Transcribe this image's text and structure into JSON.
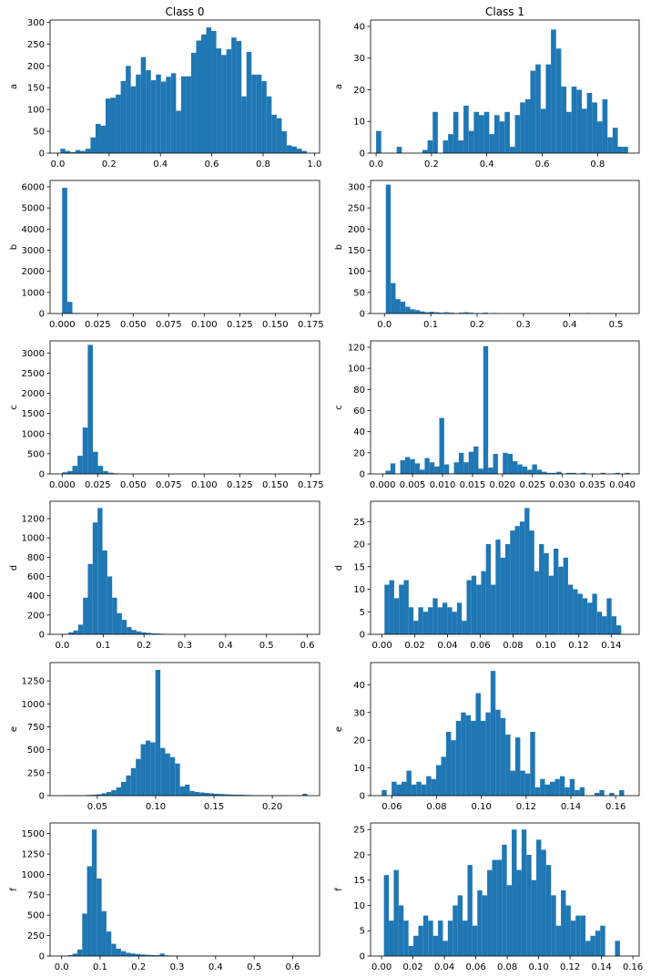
{
  "figure": {
    "background": "#ffffff",
    "bar_color": "#1f77b4"
  },
  "chart_data": [
    {
      "type": "bar",
      "title": "Class 0",
      "ylabel": "a",
      "xlim": [
        -0.03,
        1.02
      ],
      "ylim": [
        0,
        305
      ],
      "xticks": [
        0.0,
        0.2,
        0.4,
        0.6,
        0.8,
        1.0
      ],
      "xtick_labels": [
        "0.0",
        "0.2",
        "0.4",
        "0.6",
        "0.8",
        "1.0"
      ],
      "yticks": [
        0,
        50,
        100,
        150,
        200,
        250,
        300
      ],
      "ytick_labels": [
        "0",
        "50",
        "100",
        "150",
        "200",
        "250",
        "300"
      ],
      "bin_start": 0.01,
      "bin_width": 0.0196,
      "values": [
        10,
        5,
        2,
        7,
        5,
        10,
        36,
        67,
        63,
        125,
        127,
        134,
        165,
        200,
        153,
        180,
        220,
        190,
        167,
        180,
        164,
        175,
        183,
        97,
        176,
        176,
        230,
        258,
        272,
        288,
        280,
        240,
        225,
        238,
        265,
        257,
        130,
        232,
        180,
        180,
        165,
        130,
        88,
        80,
        50,
        18,
        15,
        10,
        5
      ]
    },
    {
      "type": "bar",
      "title": "Class 1",
      "ylabel": "a",
      "xlim": [
        -0.02,
        0.95
      ],
      "ylim": [
        0,
        42
      ],
      "xticks": [
        0.0,
        0.2,
        0.4,
        0.6,
        0.8
      ],
      "xtick_labels": [
        "0.0",
        "0.2",
        "0.4",
        "0.6",
        "0.8"
      ],
      "yticks": [
        0,
        10,
        20,
        30,
        40
      ],
      "ytick_labels": [
        "0",
        "10",
        "20",
        "30",
        "40"
      ],
      "bin_start": 0.0,
      "bin_width": 0.01857,
      "values": [
        7,
        0,
        0,
        0,
        2,
        0,
        0,
        0,
        0,
        1,
        4,
        13,
        0,
        4,
        6,
        13,
        4,
        15,
        7,
        13,
        12,
        13,
        6,
        12,
        10,
        13,
        2,
        12,
        16,
        17,
        26,
        28,
        14,
        28,
        39,
        33,
        21,
        13,
        21,
        20,
        14,
        19,
        16,
        10,
        17,
        5,
        8,
        2,
        2
      ]
    },
    {
      "type": "bar",
      "title": "",
      "ylabel": "b",
      "xlim": [
        -0.0085,
        0.1812
      ],
      "ylim": [
        0,
        6300
      ],
      "xticks": [
        0.0,
        0.025,
        0.05,
        0.075,
        0.1,
        0.125,
        0.15,
        0.175
      ],
      "xtick_labels": [
        "0.000",
        "0.025",
        "0.050",
        "0.075",
        "0.100",
        "0.125",
        "0.150",
        "0.175"
      ],
      "yticks": [
        0,
        1000,
        2000,
        3000,
        4000,
        5000,
        6000
      ],
      "ytick_labels": [
        "0",
        "1000",
        "2000",
        "3000",
        "4000",
        "5000",
        "6000"
      ],
      "bin_start": 0.0,
      "bin_width": 0.0036,
      "values": [
        5950,
        550,
        25,
        8,
        3,
        2,
        1,
        1,
        0,
        0,
        0,
        0,
        0,
        0,
        0,
        0,
        0,
        0,
        0,
        0,
        0,
        0,
        0,
        0,
        0,
        0,
        0,
        0,
        0,
        0,
        0,
        0,
        0,
        0,
        0,
        0,
        0,
        0,
        0,
        0,
        0,
        0,
        0,
        0,
        0,
        0,
        0,
        0,
        0,
        1
      ]
    },
    {
      "type": "bar",
      "title": "",
      "ylabel": "b",
      "xlim": [
        -0.03,
        0.55
      ],
      "ylim": [
        0,
        315
      ],
      "xticks": [
        0.0,
        0.1,
        0.2,
        0.3,
        0.4,
        0.5
      ],
      "xtick_labels": [
        "0.0",
        "0.1",
        "0.2",
        "0.3",
        "0.4",
        "0.5"
      ],
      "yticks": [
        0,
        50,
        100,
        150,
        200,
        250,
        300
      ],
      "ytick_labels": [
        "0",
        "50",
        "100",
        "150",
        "200",
        "250",
        "300"
      ],
      "bin_start": 0.003,
      "bin_width": 0.0105,
      "values": [
        305,
        72,
        34,
        28,
        16,
        10,
        8,
        5,
        3,
        4,
        3,
        2,
        3,
        2,
        1,
        2,
        3,
        2,
        1,
        1,
        2,
        0,
        1,
        0,
        0,
        0,
        0,
        0,
        0,
        0,
        0,
        0,
        0,
        0,
        0,
        0,
        0,
        0,
        0,
        0,
        0,
        1,
        0,
        0,
        0,
        0,
        1,
        0,
        0,
        0
      ]
    },
    {
      "type": "bar",
      "title": "",
      "ylabel": "c",
      "xlim": [
        -0.0085,
        0.1812
      ],
      "ylim": [
        0,
        3300
      ],
      "xticks": [
        0.0,
        0.025,
        0.05,
        0.075,
        0.1,
        0.125,
        0.15,
        0.175
      ],
      "xtick_labels": [
        "0.000",
        "0.025",
        "0.050",
        "0.075",
        "0.100",
        "0.125",
        "0.150",
        "0.175"
      ],
      "yticks": [
        0,
        500,
        1000,
        1500,
        2000,
        2500,
        3000
      ],
      "ytick_labels": [
        "0",
        "500",
        "1000",
        "1500",
        "2000",
        "2500",
        "3000"
      ],
      "bin_start": 0.0,
      "bin_width": 0.0036,
      "values": [
        40,
        70,
        200,
        450,
        1150,
        3200,
        550,
        200,
        70,
        30,
        15,
        5,
        3,
        2,
        1,
        1,
        0,
        0,
        0,
        0,
        0,
        0,
        0,
        0,
        0,
        0,
        0,
        0,
        0,
        0,
        0,
        0,
        0,
        0,
        0,
        0,
        0,
        0,
        0,
        0,
        0,
        0,
        0,
        0,
        0,
        0,
        0,
        0,
        0,
        1
      ]
    },
    {
      "type": "bar",
      "title": "",
      "ylabel": "c",
      "xlim": [
        -0.002,
        0.0428
      ],
      "ylim": [
        0,
        126
      ],
      "xticks": [
        0.0,
        0.005,
        0.01,
        0.015,
        0.02,
        0.025,
        0.03,
        0.035,
        0.04
      ],
      "xtick_labels": [
        "0.000",
        "0.005",
        "0.010",
        "0.015",
        "0.020",
        "0.025",
        "0.030",
        "0.035",
        "0.040"
      ],
      "yticks": [
        0,
        20,
        40,
        60,
        80,
        100,
        120
      ],
      "ytick_labels": [
        "0",
        "20",
        "40",
        "60",
        "80",
        "100",
        "120"
      ],
      "bin_start": 0.0005,
      "bin_width": 0.000815,
      "values": [
        3,
        10,
        0,
        13,
        16,
        14,
        10,
        4,
        15,
        11,
        7,
        53,
        9,
        0,
        11,
        20,
        11,
        21,
        26,
        5,
        121,
        6,
        19,
        0,
        20,
        19,
        12,
        9,
        7,
        4,
        9,
        4,
        2,
        1,
        1,
        2,
        0,
        1,
        1,
        0,
        1,
        0,
        0,
        0,
        1,
        0,
        0,
        1,
        0,
        1
      ]
    },
    {
      "type": "bar",
      "title": "",
      "ylabel": "d",
      "xlim": [
        -0.03,
        0.63
      ],
      "ylim": [
        0,
        1380
      ],
      "xticks": [
        0.0,
        0.1,
        0.2,
        0.3,
        0.4,
        0.5,
        0.6
      ],
      "xtick_labels": [
        "0.0",
        "0.1",
        "0.2",
        "0.3",
        "0.4",
        "0.5",
        "0.6"
      ],
      "yticks": [
        0,
        200,
        400,
        600,
        800,
        1000,
        1200
      ],
      "ytick_labels": [
        "0",
        "200",
        "400",
        "600",
        "800",
        "1000",
        "1200"
      ],
      "bin_start": 0.003,
      "bin_width": 0.0119,
      "values": [
        5,
        20,
        40,
        100,
        380,
        730,
        1160,
        1310,
        870,
        600,
        380,
        220,
        150,
        75,
        45,
        30,
        20,
        15,
        10,
        8,
        5,
        3,
        2,
        2,
        1,
        1,
        0,
        0,
        0,
        0,
        0,
        0,
        0,
        0,
        0,
        0,
        0,
        0,
        0,
        0,
        0,
        0,
        0,
        0,
        0,
        0,
        0,
        0,
        1,
        0
      ]
    },
    {
      "type": "bar",
      "title": "",
      "ylabel": "d",
      "xlim": [
        -0.007,
        0.157
      ],
      "ylim": [
        0,
        29.5
      ],
      "xticks": [
        0.0,
        0.02,
        0.04,
        0.06,
        0.08,
        0.1,
        0.12,
        0.14
      ],
      "xtick_labels": [
        "0.00",
        "0.02",
        "0.04",
        "0.06",
        "0.08",
        "0.10",
        "0.12",
        "0.14"
      ],
      "yticks": [
        0,
        5,
        10,
        15,
        20,
        25
      ],
      "ytick_labels": [
        "0",
        "5",
        "10",
        "15",
        "20",
        "25"
      ],
      "bin_start": 0.0015,
      "bin_width": 0.00295,
      "values": [
        11,
        12,
        8,
        11,
        12,
        6,
        3,
        6,
        5,
        6,
        8,
        6,
        7,
        6,
        5,
        7,
        3,
        12,
        13,
        11,
        14,
        20,
        11,
        21,
        17,
        20,
        23,
        24,
        25,
        28,
        23,
        14,
        20,
        18,
        13,
        19,
        15,
        17,
        11,
        10,
        9,
        8,
        7,
        9,
        5,
        4,
        8,
        4,
        2
      ]
    },
    {
      "type": "bar",
      "title": "",
      "ylabel": "e",
      "xlim": [
        0.0095,
        0.2405
      ],
      "ylim": [
        0,
        1450
      ],
      "xticks": [
        0.05,
        0.1,
        0.15,
        0.2
      ],
      "xtick_labels": [
        "0.05",
        "0.10",
        "0.15",
        "0.20"
      ],
      "yticks": [
        0,
        250,
        500,
        750,
        1000,
        1250
      ],
      "ytick_labels": [
        "0",
        "250",
        "500",
        "750",
        "1000",
        "1250"
      ],
      "bin_start": 0.02,
      "bin_width": 0.0042,
      "values": [
        5,
        3,
        3,
        5,
        5,
        8,
        10,
        15,
        25,
        40,
        60,
        90,
        150,
        220,
        300,
        400,
        560,
        600,
        580,
        1370,
        520,
        460,
        420,
        350,
        100,
        120,
        50,
        40,
        35,
        30,
        25,
        20,
        18,
        15,
        12,
        10,
        10,
        8,
        6,
        5,
        5,
        5,
        4,
        3,
        3,
        3,
        2,
        2,
        2,
        20
      ]
    },
    {
      "type": "bar",
      "title": "",
      "ylabel": "e",
      "xlim": [
        0.0505,
        0.1705
      ],
      "ylim": [
        0,
        48
      ],
      "xticks": [
        0.06,
        0.08,
        0.1,
        0.12,
        0.14,
        0.16
      ],
      "xtick_labels": [
        "0.06",
        "0.08",
        "0.10",
        "0.12",
        "0.14",
        "0.16"
      ],
      "yticks": [
        0,
        10,
        20,
        30,
        40
      ],
      "ytick_labels": [
        "0",
        "10",
        "20",
        "30",
        "40"
      ],
      "bin_start": 0.0555,
      "bin_width": 0.00221,
      "values": [
        2,
        0,
        5,
        4,
        5,
        9,
        4,
        5,
        4,
        7,
        6,
        11,
        14,
        23,
        20,
        27,
        30,
        29,
        27,
        37,
        27,
        30,
        45,
        31,
        28,
        22,
        9,
        21,
        9,
        8,
        23,
        3,
        6,
        4,
        5,
        6,
        7,
        3,
        6,
        2,
        3,
        0,
        0,
        1,
        2,
        0,
        1,
        0,
        2
      ]
    },
    {
      "type": "bar",
      "title": "",
      "ylabel": "f",
      "xlim": [
        -0.03,
        0.67
      ],
      "ylim": [
        0,
        1630
      ],
      "xticks": [
        0.0,
        0.1,
        0.2,
        0.3,
        0.4,
        0.5,
        0.6
      ],
      "xtick_labels": [
        "0.0",
        "0.1",
        "0.2",
        "0.3",
        "0.4",
        "0.5",
        "0.6"
      ],
      "yticks": [
        0,
        250,
        500,
        750,
        1000,
        1250,
        1500
      ],
      "ytick_labels": [
        "0",
        "250",
        "500",
        "750",
        "1000",
        "1250",
        "1500"
      ],
      "bin_start": 0.003,
      "bin_width": 0.0126,
      "values": [
        5,
        10,
        30,
        80,
        520,
        1100,
        1550,
        950,
        550,
        300,
        150,
        90,
        60,
        40,
        30,
        25,
        20,
        15,
        12,
        10,
        30,
        8,
        6,
        5,
        4,
        3,
        3,
        2,
        2,
        2,
        1,
        1,
        1,
        1,
        1,
        1,
        1,
        1,
        1,
        1,
        1,
        1,
        1,
        1,
        1,
        1,
        1,
        1,
        1,
        1
      ]
    },
    {
      "type": "bar",
      "title": "",
      "ylabel": "f",
      "xlim": [
        -0.007,
        0.164
      ],
      "ylim": [
        0,
        26.3
      ],
      "xticks": [
        0.0,
        0.02,
        0.04,
        0.06,
        0.08,
        0.1,
        0.12,
        0.14,
        0.16
      ],
      "xtick_labels": [
        "0.00",
        "0.02",
        "0.04",
        "0.06",
        "0.08",
        "0.10",
        "0.12",
        "0.14",
        "0.16"
      ],
      "yticks": [
        0,
        5,
        10,
        15,
        20,
        25
      ],
      "ytick_labels": [
        "0",
        "5",
        "10",
        "15",
        "20",
        "25"
      ],
      "bin_start": 0.0015,
      "bin_width": 0.00313,
      "values": [
        16,
        7,
        17,
        10,
        7,
        2,
        4,
        6,
        8,
        7,
        4,
        7,
        3,
        7,
        10,
        12,
        7,
        18,
        6,
        13,
        12,
        17,
        19,
        19,
        22,
        14,
        25,
        17,
        25,
        20,
        15,
        23,
        21,
        18,
        12,
        6,
        13,
        10,
        7,
        8,
        8,
        3,
        4,
        5,
        6,
        0,
        0,
        3,
        0
      ]
    }
  ]
}
